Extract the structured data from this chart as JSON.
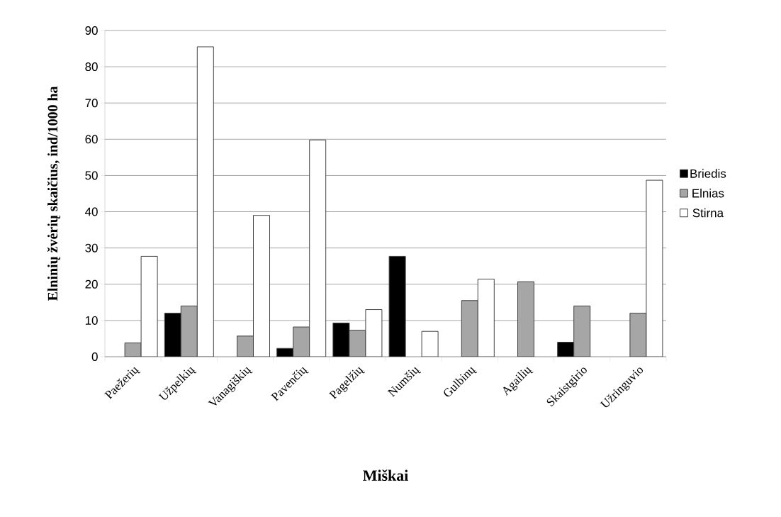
{
  "chart_data": {
    "type": "bar",
    "xlabel": "Miškai",
    "ylabel": "Elninių žvėrių skaičius, ind/1000 ha",
    "categories": [
      "Paežerių",
      "Užpelkių",
      "Vanagiškių",
      "Pavenčių",
      "Pagelžių",
      "Numšių",
      "Gulbinų",
      "Agailių",
      "Skaistgirio",
      "Užringuvio"
    ],
    "series": [
      {
        "name": "Briedis",
        "color": "#000000",
        "values": [
          null,
          12.0,
          null,
          2.3,
          9.3,
          27.7,
          null,
          null,
          4.0,
          null
        ]
      },
      {
        "name": "Elnias",
        "color": "#a6a6a6",
        "values": [
          3.8,
          14.0,
          5.7,
          8.2,
          7.3,
          null,
          15.5,
          20.7,
          14.0,
          12.0
        ]
      },
      {
        "name": "Stirna",
        "color": "#ffffff",
        "values": [
          27.7,
          85.5,
          39.0,
          59.8,
          13.0,
          7.0,
          21.4,
          null,
          null,
          48.7
        ]
      }
    ],
    "ylim": [
      0,
      90
    ],
    "yticks": [
      0,
      10,
      20,
      30,
      40,
      50,
      60,
      70,
      80,
      90
    ],
    "grid": "y",
    "legend": "right"
  }
}
